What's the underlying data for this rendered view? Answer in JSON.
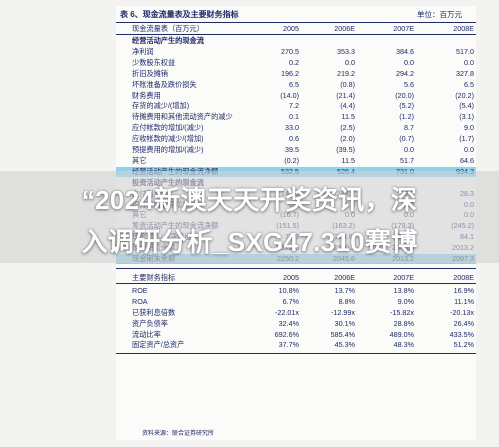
{
  "table": {
    "title": "表 6、现金流量表及主要财务指标",
    "unit": "单位：百万元",
    "header": {
      "label": "现金流量表（百万元）",
      "years": [
        "2005",
        "2006E",
        "2007E",
        "2008E"
      ]
    },
    "rows": [
      {
        "label": "经营活动产生的现金流",
        "values": [
          "",
          "",
          "",
          ""
        ],
        "section": true
      },
      {
        "label": "净利润",
        "values": [
          "270.5",
          "353.3",
          "384.6",
          "517.0"
        ]
      },
      {
        "label": "少数股东权益",
        "values": [
          "0.2",
          "0.0",
          "0.0",
          "0.0"
        ]
      },
      {
        "label": "折旧及摊销",
        "values": [
          "196.2",
          "219.2",
          "294.2",
          "327.8"
        ]
      },
      {
        "label": "坏账准备及跌价损失",
        "values": [
          "6.5",
          "(0.8)",
          "5.6",
          "6.5"
        ]
      },
      {
        "label": "财务费用",
        "values": [
          "(14.0)",
          "(21.4)",
          "(20.0)",
          "(20.2)"
        ]
      },
      {
        "label": "存货的减少/(增加)",
        "values": [
          "7.2",
          "(4.4)",
          "(5.2)",
          "(5.4)"
        ]
      },
      {
        "label": "待摊费用和其他流动资产的减少",
        "values": [
          "0.1",
          "11.5",
          "(1.2)",
          "(3.1)"
        ]
      },
      {
        "label": "应付帐款的增加/(减少)",
        "values": [
          "33.0",
          "(2.5)",
          "8.7",
          "9.0"
        ]
      },
      {
        "label": "应收帐款的减少/(增加)",
        "values": [
          "0.6",
          "(2.0)",
          "(0.7)",
          "(1.7)"
        ]
      },
      {
        "label": "预提费用的增加/(减少)",
        "values": [
          "39.5",
          "(39.5)",
          "0.0",
          "0.0"
        ]
      },
      {
        "label": "其它",
        "values": [
          "(0.2)",
          "11.5",
          "51.7",
          "64.6"
        ]
      },
      {
        "label": "经营活动产生的现金流净额",
        "values": [
          "532.5",
          "526.4",
          "731.0",
          "934.3"
        ],
        "highlight": true
      },
      {
        "label": "投资活动产生的现金流",
        "values": [
          "",
          "",
          "",
          ""
        ],
        "section": true
      },
      {
        "label": "支付利息",
        "values": [
          "148.8",
          "184.7",
          "29.0",
          "28.3"
        ]
      },
      {
        "label": "银行贷款的净增加",
        "values": [
          "0.0",
          "0.0",
          "0.0",
          "0.0"
        ]
      },
      {
        "label": "其它",
        "values": [
          "(16.7)",
          "0.0",
          "0.0",
          "0.0"
        ]
      },
      {
        "label": "筹资活动产生的现金流净额",
        "values": [
          "(151.5)",
          "(163.2)",
          "(179.3)",
          "(245.2)"
        ]
      },
      {
        "label": "现金流入/（净流出）",
        "values": [
          "77.9",
          "(204.6)",
          "(32.4)",
          "84.1"
        ]
      },
      {
        "label": "现金期初余额",
        "values": [
          "2172.3",
          "2250.2",
          "2045.6",
          "2013.2"
        ]
      },
      {
        "label": "现金期末余额",
        "values": [
          "2250.2",
          "2045.6",
          "2013.2",
          "2097.3"
        ],
        "highlight": true
      }
    ]
  },
  "indicators": {
    "header": {
      "label": "主要财务指标",
      "years": [
        "2005",
        "2006E",
        "2007E",
        "2008E"
      ]
    },
    "rows": [
      {
        "label": "ROE",
        "values": [
          "10.8%",
          "13.7%",
          "13.8%",
          "16.9%"
        ]
      },
      {
        "label": "ROA",
        "values": [
          "6.7%",
          "8.8%",
          "9.0%",
          "11.1%"
        ]
      },
      {
        "label": "已获利息倍数",
        "values": [
          "-22.01x",
          "-12.99x",
          "-15.82x",
          "-20.13x"
        ]
      },
      {
        "label": "资产负债率",
        "values": [
          "32.4%",
          "30.1%",
          "28.8%",
          "26.4%"
        ]
      },
      {
        "label": "流动比率",
        "values": [
          "692.6%",
          "585.4%",
          "489.0%",
          "433.5%"
        ]
      },
      {
        "label": "固定资产/总资产",
        "values": [
          "37.7%",
          "45.3%",
          "48.3%",
          "51.2%"
        ]
      }
    ],
    "source": "资料来源：联合证券研究所"
  },
  "watermark": {
    "line1": "“2024新澳天天开奖资讯，深",
    "line2": "入调研分析_SXG47.310赛博"
  }
}
